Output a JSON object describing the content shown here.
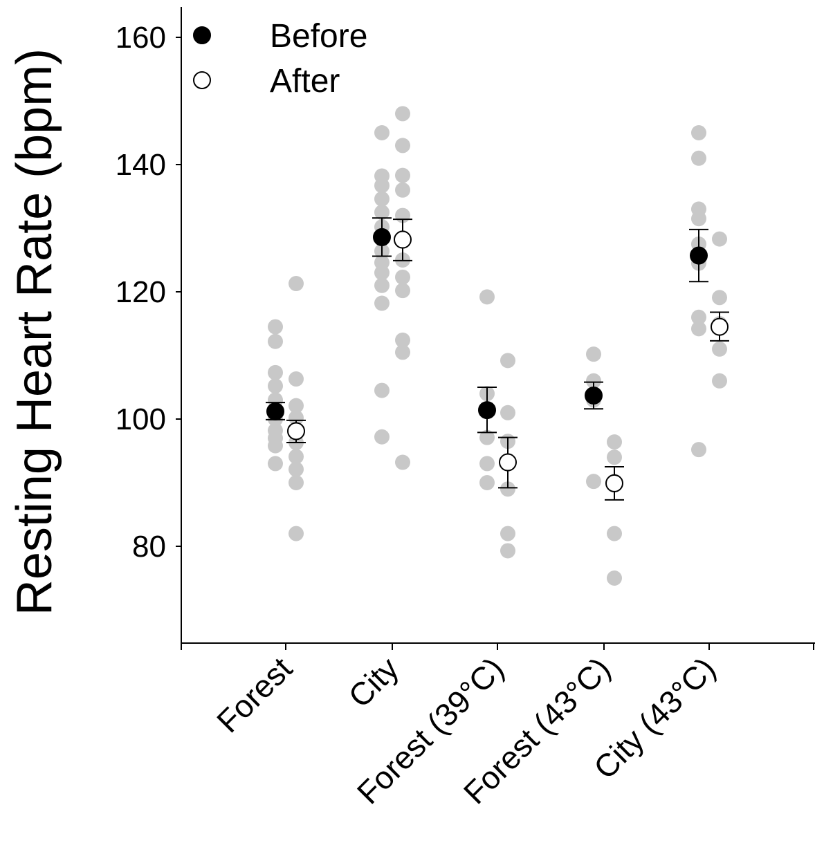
{
  "chart_data": {
    "type": "scatter",
    "title": "",
    "xlabel": "",
    "ylabel": "Resting Heart Rate (bpm)",
    "ylim": [
      65,
      165
    ],
    "yticks": [
      80,
      100,
      120,
      140,
      160
    ],
    "categories": [
      "Forest",
      "City",
      "Forest (39°C)",
      "Forest (43°C)",
      "City (43°C)"
    ],
    "legend": {
      "position": "top-left"
    },
    "colors": {
      "before": "#000000",
      "after": "#ffffff",
      "individual": "#c8c8c8"
    },
    "series": [
      {
        "name": "Before",
        "marker": "filled-circle",
        "mean": [
          101.2,
          128.6,
          101.4,
          103.7,
          125.7
        ],
        "error_low": [
          99.9,
          125.6,
          97.9,
          101.6,
          121.6
        ],
        "error_high": [
          102.6,
          131.6,
          105.0,
          105.8,
          129.8
        ],
        "points": [
          [
            114.5,
            112.2,
            107.3,
            105.2,
            103.0,
            101.5,
            100.0,
            98.2,
            97.0,
            95.8,
            93.0
          ],
          [
            145.0,
            138.2,
            136.7,
            134.6,
            132.5,
            130.2,
            128.3,
            126.4,
            124.6,
            123.0,
            121.0,
            118.2,
            104.5,
            97.2
          ],
          [
            119.2,
            104.0,
            101.5,
            97.1,
            93.0,
            90.0
          ],
          [
            110.2,
            106.0,
            103.0,
            90.2
          ],
          [
            145.0,
            141.0,
            133.0,
            131.5,
            127.5,
            124.5,
            116.0,
            114.2,
            95.2
          ]
        ]
      },
      {
        "name": "After",
        "marker": "open-circle",
        "mean": [
          98.1,
          128.2,
          93.2,
          89.9,
          114.5
        ],
        "error_low": [
          96.3,
          124.9,
          89.2,
          87.3,
          112.3
        ],
        "error_high": [
          99.8,
          131.4,
          97.1,
          92.5,
          116.8
        ],
        "points": [
          [
            121.3,
            106.3,
            102.1,
            100.2,
            98.4,
            96.3,
            94.1,
            92.1,
            90.0,
            82.0
          ],
          [
            148.0,
            143.0,
            138.3,
            136.0,
            132.0,
            128.5,
            125.0,
            122.3,
            120.2,
            112.4,
            110.5,
            93.2
          ],
          [
            109.2,
            101.0,
            96.5,
            89.0,
            82.0,
            79.3
          ],
          [
            96.4,
            94.0,
            90.2,
            82.0,
            75.0
          ],
          [
            128.3,
            119.1,
            115.0,
            111.0,
            106.0
          ]
        ]
      }
    ]
  }
}
